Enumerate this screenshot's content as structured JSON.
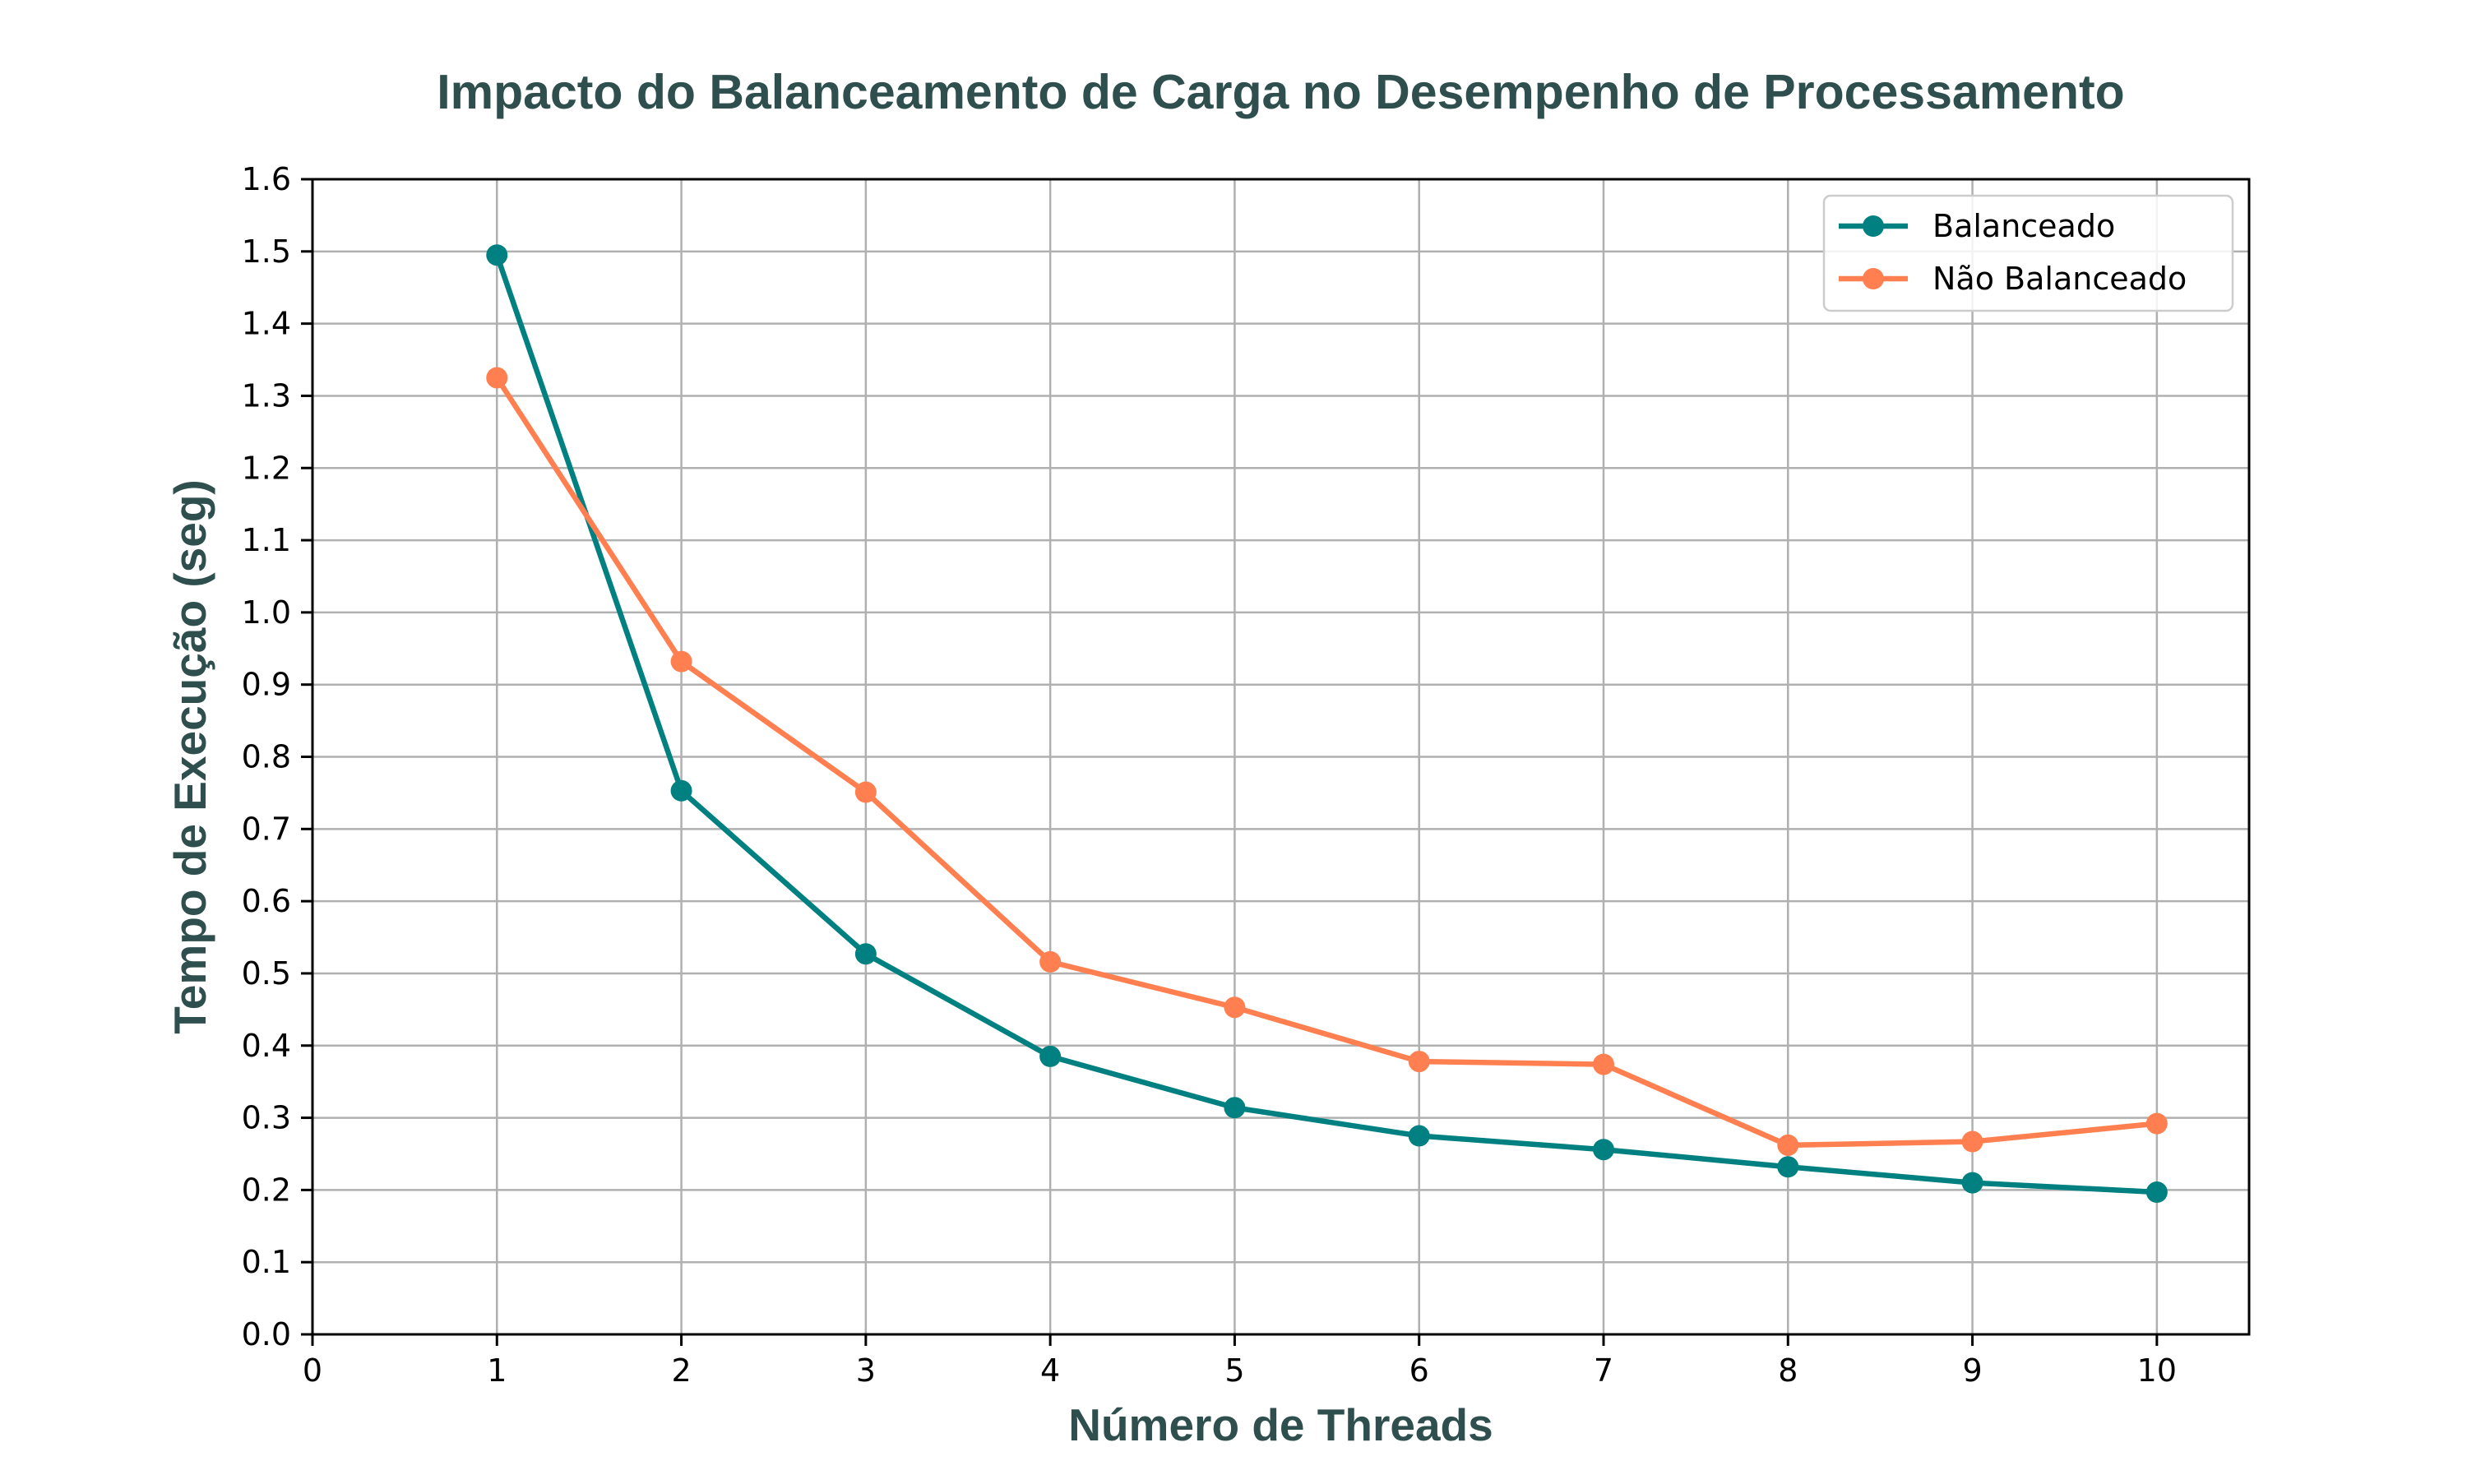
{
  "chart_data": {
    "type": "line",
    "title": "Impacto do Balanceamento de Carga no Desempenho de Processamento",
    "xlabel": "Número de Threads",
    "ylabel": "Tempo de Execução (seg)",
    "xlim": [
      0,
      10.5
    ],
    "ylim": [
      0,
      1.6
    ],
    "x_ticks": [
      "0",
      "1",
      "2",
      "3",
      "4",
      "5",
      "6",
      "7",
      "8",
      "9",
      "10"
    ],
    "y_ticks": [
      "0.0",
      "0.1",
      "0.2",
      "0.3",
      "0.4",
      "0.5",
      "0.6",
      "0.7",
      "0.8",
      "0.9",
      "1.0",
      "1.1",
      "1.2",
      "1.3",
      "1.4",
      "1.5",
      "1.6"
    ],
    "grid": true,
    "legend_position": "top-right",
    "x": [
      1,
      2,
      3,
      4,
      5,
      6,
      7,
      8,
      9,
      10
    ],
    "series": [
      {
        "name": "Balanceado",
        "color": "#008080",
        "values": [
          1.495,
          0.753,
          0.527,
          0.385,
          0.314,
          0.275,
          0.256,
          0.232,
          0.21,
          0.197
        ]
      },
      {
        "name": "Não Balanceado",
        "color": "#ff7f50",
        "values": [
          1.325,
          0.932,
          0.751,
          0.516,
          0.453,
          0.378,
          0.374,
          0.262,
          0.267,
          0.292
        ]
      }
    ]
  }
}
